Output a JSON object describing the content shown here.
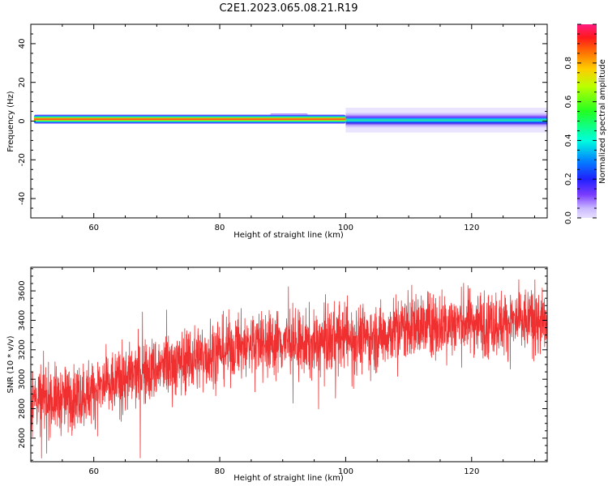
{
  "title": "C2E1.2023.065.08.21.R19",
  "colors": {
    "snr_line": "#f03030",
    "spectrum_core": "#ff2040",
    "spectrum_mid": "#33dd66",
    "spectrum_low": "#7a3cff",
    "spectrum_floor": "#dcd2ff"
  },
  "chart_data": [
    {
      "type": "heatmap",
      "xlabel": "Height of straight line (km)",
      "ylabel": "Frequency (Hz)",
      "xlim": [
        50,
        132
      ],
      "ylim": [
        -50,
        50
      ],
      "xticks": [
        60,
        80,
        100,
        120
      ],
      "yticks": [
        40,
        20,
        0,
        -20,
        -40
      ],
      "ytick_labels": [
        "40",
        "20",
        "0",
        "-20",
        "-40"
      ],
      "grid": false,
      "colorbar": {
        "label": "Normalized spectral amplitude",
        "range": [
          0,
          1
        ],
        "ticks": [
          0.0,
          0.2,
          0.4,
          0.6,
          0.8
        ],
        "tick_labels": [
          "0.0",
          "0.2",
          "0.4",
          "0.6",
          "0.8"
        ],
        "colormap": "gist_rainbow_r"
      },
      "bands": [
        {
          "x": [
            50.5,
            100
          ],
          "f_center": 1.0,
          "f_half_width": 2.5,
          "peak_amplitude": 1.0
        },
        {
          "x": [
            88,
            94
          ],
          "f_center": 3.0,
          "f_half_width": 1.0,
          "peak_amplitude": 0.2
        },
        {
          "x": [
            100,
            132
          ],
          "f_center": 0.5,
          "f_half_width": 4.0,
          "peak_amplitude": 0.45
        }
      ]
    },
    {
      "type": "line",
      "xlabel": "Height of straight line (km)",
      "ylabel": "SNR (10 * v/v)",
      "xlim": [
        50,
        132
      ],
      "ylim": [
        2440,
        3760
      ],
      "xticks": [
        60,
        80,
        100,
        120
      ],
      "yticks": [
        2600,
        2800,
        3000,
        3200,
        3400,
        3600
      ],
      "grid": false,
      "series": [
        {
          "x": [
            50,
            55,
            60,
            65,
            70,
            75,
            80,
            85,
            90,
            95,
            98,
            100,
            105,
            108,
            110,
            115,
            120,
            125,
            130,
            132
          ],
          "values": [
            2880,
            2860,
            2920,
            3000,
            3070,
            3130,
            3190,
            3240,
            3250,
            3230,
            3280,
            3290,
            3280,
            3340,
            3360,
            3370,
            3390,
            3380,
            3400,
            3360
          ],
          "noise_amplitude": 110
        }
      ]
    }
  ]
}
